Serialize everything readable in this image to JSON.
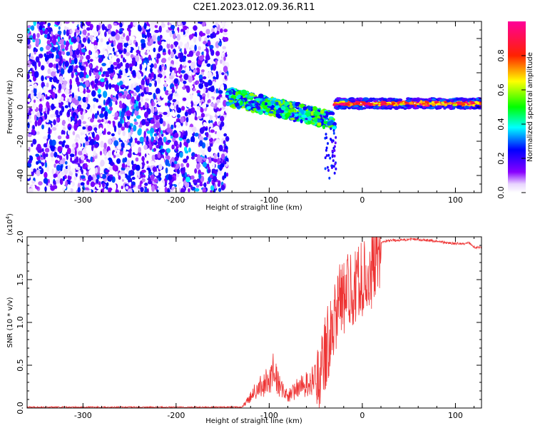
{
  "title": "C2E1.2023.012.09.36.R11",
  "chart_data": [
    {
      "type": "heatmap",
      "title": "C2E1.2023.012.09.36.R11",
      "xlabel": "Height of straight line (km)",
      "ylabel": "Frequency (Hz)",
      "xlim": [
        -360,
        128
      ],
      "ylim": [
        -50,
        50
      ],
      "xticks": [
        -300,
        -200,
        -100,
        0,
        100
      ],
      "yticks": [
        -40,
        -20,
        0,
        20,
        40
      ],
      "colorbar": {
        "label": "Normalized spectral amplitude",
        "range": [
          0.0,
          1.0
        ],
        "ticks": [
          "0.0",
          "0.2",
          "0.4",
          "0.6",
          "0.8"
        ],
        "colormap": "rainbow (purple - blue - cyan - green - yellow - red - magenta)"
      },
      "regions": [
        {
          "x_range": [
            -360,
            -145
          ],
          "y_range": [
            -50,
            50
          ],
          "amplitude_range": [
            0.0,
            0.3
          ]
        },
        {
          "x_range": [
            -145,
            -30
          ],
          "y_range": [
            -12,
            12
          ],
          "amplitude_range": [
            0.2,
            0.6
          ]
        },
        {
          "x_range": [
            -30,
            128
          ],
          "y_range": [
            -2,
            6
          ],
          "amplitude_range": [
            0.6,
            1.0
          ]
        }
      ]
    },
    {
      "type": "line",
      "xlabel": "Height of straight line (km)",
      "ylabel": "SNR (10 * v/v)",
      "scale_label": "(x10",
      "scale_exp": "4",
      "scale_close": ")",
      "xlim": [
        -360,
        128
      ],
      "ylim": [
        0.0,
        2.0
      ],
      "xticks": [
        -300,
        -200,
        -100,
        0,
        100
      ],
      "yticks": [
        "0.0",
        "0.5",
        "1.0",
        "1.5",
        "2.0"
      ],
      "series_color": "#ee3333",
      "series": [
        {
          "x": [
            -360,
            -300,
            -200,
            -130,
            -125,
            -115,
            -105,
            -95,
            -88,
            -80,
            -70,
            -60,
            -50,
            -45,
            -40,
            -35,
            -30,
            -25,
            -20,
            -15,
            -10,
            -5,
            0,
            5,
            10,
            15,
            20,
            25,
            30,
            40,
            50,
            60,
            70,
            80,
            90,
            100,
            110,
            115,
            120,
            128
          ],
          "values": [
            0.01,
            0.01,
            0.01,
            0.01,
            0.05,
            0.18,
            0.25,
            0.38,
            0.2,
            0.12,
            0.2,
            0.25,
            0.3,
            0.45,
            0.7,
            0.9,
            1.1,
            1.3,
            1.35,
            1.4,
            1.45,
            1.5,
            1.55,
            1.6,
            1.65,
            1.8,
            1.92,
            1.95,
            1.96,
            1.96,
            1.97,
            1.97,
            1.96,
            1.95,
            1.93,
            1.92,
            1.92,
            1.93,
            1.88,
            1.87
          ]
        }
      ]
    }
  ]
}
